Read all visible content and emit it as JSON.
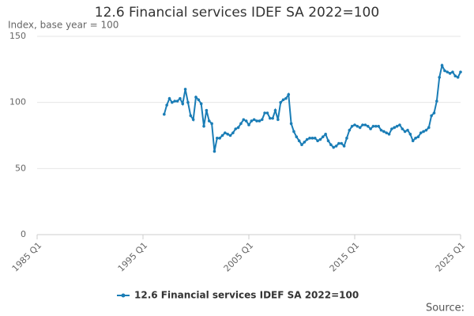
{
  "chart_data": {
    "type": "line",
    "title": "12.6 Financial services IDEF SA 2022=100",
    "subtitle": "Index, base year = 100",
    "source": "Source:",
    "xlim": [
      1985,
      2025
    ],
    "xticks": [
      {
        "value": 1985,
        "label": "1985 Q1"
      },
      {
        "value": 1995,
        "label": "1995 Q1"
      },
      {
        "value": 2005,
        "label": "2005 Q1"
      },
      {
        "value": 2015,
        "label": "2015 Q1"
      },
      {
        "value": 2025,
        "label": "2025 Q1"
      }
    ],
    "ylim": [
      0,
      150
    ],
    "yticks": [
      0,
      50,
      100,
      150
    ],
    "grid": true,
    "legend": "bottom",
    "x": [
      1997,
      1997.25,
      1997.5,
      1997.75,
      1998,
      1998.25,
      1998.5,
      1998.75,
      1999,
      1999.25,
      1999.5,
      1999.75,
      2000,
      2000.25,
      2000.5,
      2000.75,
      2001,
      2001.25,
      2001.5,
      2001.75,
      2002,
      2002.25,
      2002.5,
      2002.75,
      2003,
      2003.25,
      2003.5,
      2003.75,
      2004,
      2004.25,
      2004.5,
      2004.75,
      2005,
      2005.25,
      2005.5,
      2005.75,
      2006,
      2006.25,
      2006.5,
      2006.75,
      2007,
      2007.25,
      2007.5,
      2007.75,
      2008,
      2008.25,
      2008.5,
      2008.75,
      2009,
      2009.25,
      2009.5,
      2009.75,
      2010,
      2010.25,
      2010.5,
      2010.75,
      2011,
      2011.25,
      2011.5,
      2011.75,
      2012,
      2012.25,
      2012.5,
      2012.75,
      2013,
      2013.25,
      2013.5,
      2013.75,
      2014,
      2014.25,
      2014.5,
      2014.75,
      2015,
      2015.25,
      2015.5,
      2015.75,
      2016,
      2016.25,
      2016.5,
      2016.75,
      2017,
      2017.25,
      2017.5,
      2017.75,
      2018,
      2018.25,
      2018.5,
      2018.75,
      2019,
      2019.25,
      2019.5,
      2019.75,
      2020,
      2020.25,
      2020.5,
      2020.75,
      2021,
      2021.25,
      2021.5,
      2021.75,
      2022,
      2022.25,
      2022.5,
      2022.75,
      2023,
      2023.25,
      2023.5,
      2023.75,
      2024,
      2024.25,
      2024.5,
      2024.75,
      2025
    ],
    "series": [
      {
        "name": "12.6 Financial services IDEF SA 2022=100",
        "color": "#1a7db6",
        "values": [
          91,
          98,
          103,
          100,
          101,
          101,
          103,
          99,
          110,
          100,
          90,
          87,
          104,
          102,
          99,
          82,
          94,
          86,
          84,
          63,
          73,
          73,
          75,
          77,
          76,
          75,
          77,
          80,
          81,
          84,
          87,
          86,
          83,
          86,
          87,
          86,
          86,
          87,
          92,
          92,
          88,
          88,
          94,
          87,
          100,
          102,
          103,
          106,
          84,
          78,
          74,
          71,
          68,
          70,
          72,
          73,
          73,
          73,
          71,
          72,
          74,
          76,
          71,
          68,
          66,
          67,
          69,
          69,
          67,
          73,
          79,
          82,
          83,
          82,
          81,
          83,
          83,
          82,
          80,
          82,
          82,
          82,
          79,
          78,
          77,
          76,
          80,
          81,
          82,
          83,
          80,
          78,
          79,
          76,
          71,
          73,
          74,
          77,
          78,
          79,
          81,
          90,
          92,
          101,
          119,
          128,
          124,
          123,
          122,
          123,
          120,
          119,
          123
        ]
      }
    ]
  }
}
